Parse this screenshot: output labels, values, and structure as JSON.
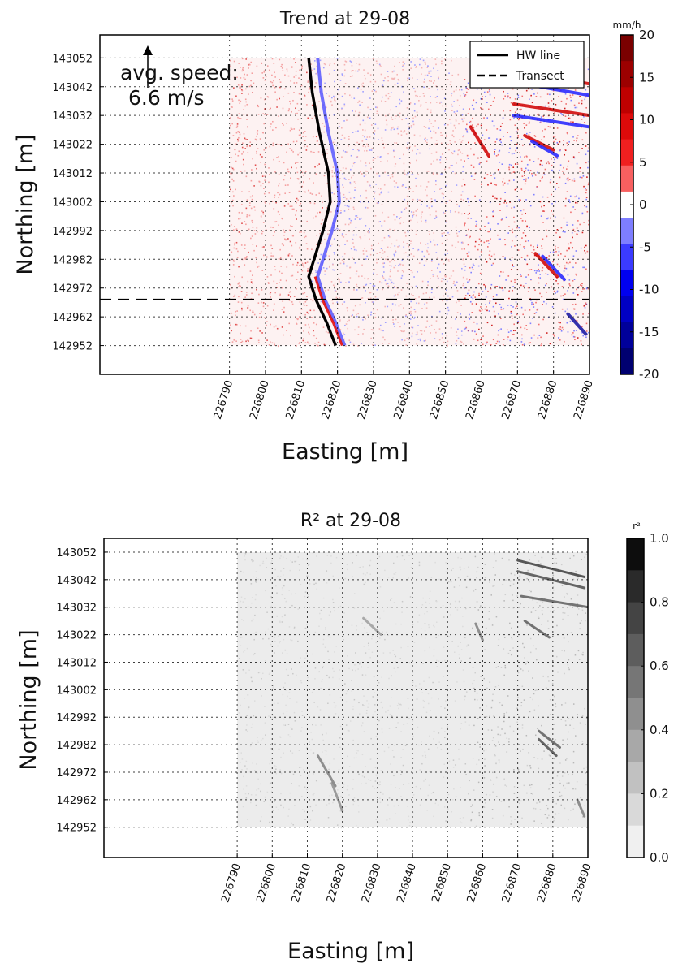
{
  "chart_data": [
    {
      "type": "heatmap",
      "title": "Trend at 29-08",
      "xlabel": "Easting [m]",
      "ylabel": "Northing [m]",
      "x_ticks": [
        "226790",
        "226800",
        "226810",
        "226820",
        "226830",
        "226840",
        "226850",
        "226860",
        "226870",
        "226880",
        "226890"
      ],
      "y_ticks": [
        "143052",
        "143042",
        "143032",
        "143022",
        "143012",
        "143002",
        "142992",
        "142982",
        "142972",
        "142962",
        "142952"
      ],
      "xlim": [
        226754,
        226890
      ],
      "ylim": [
        142942,
        143060
      ],
      "grid": true,
      "colorbar": {
        "unit": "mm/h",
        "ticks": [
          "20",
          "15",
          "10",
          "5",
          "0",
          "-5",
          "-10",
          "-15",
          "-20"
        ],
        "range": [
          -20,
          20
        ],
        "colors": [
          "#7a0000",
          "#9c0000",
          "#bf0000",
          "#dd0a0a",
          "#f02020",
          "#f86060",
          "#ffffff",
          "#7e7eff",
          "#3b3bff",
          "#0000f0",
          "#0000c4",
          "#00009a",
          "#000070"
        ]
      },
      "legend": {
        "position": "top-right",
        "entries": [
          {
            "label": "HW line",
            "style": "solid"
          },
          {
            "label": "Transect",
            "style": "dashed"
          }
        ]
      },
      "annotation": {
        "line1": "avg. speed:",
        "line2": "6.6 m/s",
        "arrow_direction": "north"
      },
      "transect_northing": 142968,
      "hw_line": [
        [
          226812,
          143052
        ],
        [
          226813,
          143040
        ],
        [
          226815,
          143026
        ],
        [
          226817.5,
          143012
        ],
        [
          226818,
          143002
        ],
        [
          226816,
          142992
        ],
        [
          226813.5,
          142982
        ],
        [
          226812,
          142976
        ],
        [
          226814,
          142968
        ],
        [
          226817,
          142960
        ],
        [
          226819.5,
          142952
        ]
      ]
    },
    {
      "type": "heatmap",
      "title": "R² at 29-08",
      "xlabel": "Easting [m]",
      "ylabel": "Northing [m]",
      "x_ticks": [
        "226790",
        "226800",
        "226810",
        "226820",
        "226830",
        "226840",
        "226850",
        "226860",
        "226870",
        "226880",
        "226890"
      ],
      "y_ticks": [
        "143052",
        "143042",
        "143032",
        "143022",
        "143012",
        "143002",
        "142992",
        "142982",
        "142972",
        "142962",
        "142952"
      ],
      "xlim": [
        226752,
        226890
      ],
      "ylim": [
        142941,
        143057
      ],
      "grid": true,
      "colorbar": {
        "unit": "r²",
        "ticks": [
          "1.0",
          "0.8",
          "0.6",
          "0.4",
          "0.2",
          "0.0"
        ],
        "range": [
          0,
          1
        ],
        "colors": [
          "#0d0d0d",
          "#2a2a2a",
          "#444444",
          "#5d5d5d",
          "#767676",
          "#8f8f8f",
          "#a8a8a8",
          "#c1c1c1",
          "#d9d9d9",
          "#f0f0f0"
        ]
      }
    }
  ]
}
